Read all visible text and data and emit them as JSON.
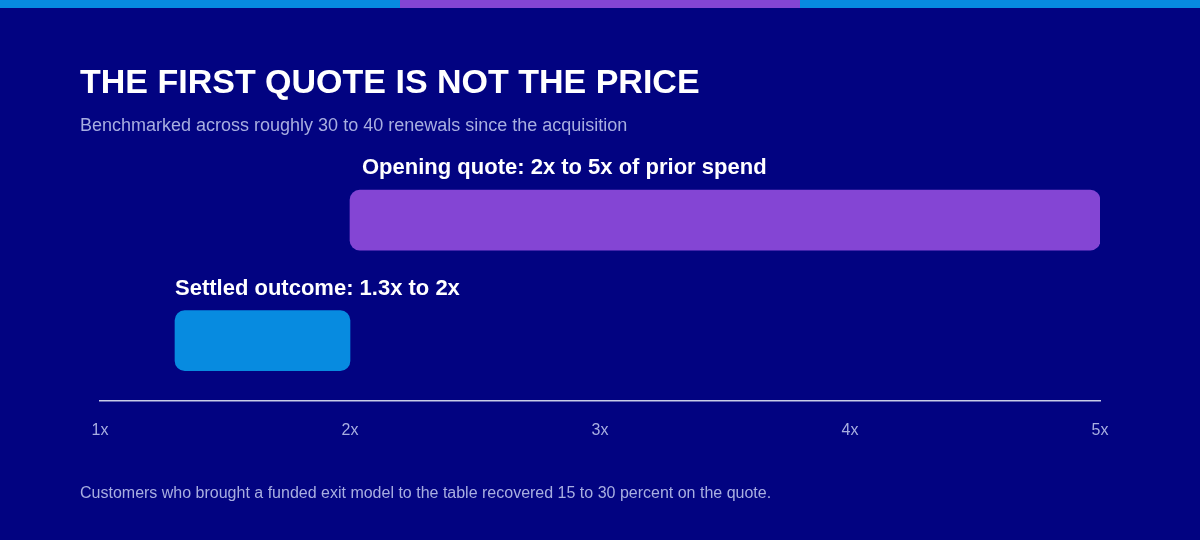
{
  "chart_data": {
    "type": "bar",
    "orientation": "horizontal",
    "title": "THE FIRST QUOTE IS NOT THE PRICE",
    "subtitle": "Benchmarked across roughly 30 to 40 renewals since the acquisition",
    "categories": [
      "Opening quote: 2x to 5x of prior spend",
      "Settled outcome: 1.3x to 2x"
    ],
    "values": [
      3,
      0.7
    ],
    "base": [
      2,
      1.3
    ],
    "colors": [
      "#8445d4",
      "#078be0"
    ],
    "xlim": [
      1,
      5
    ],
    "xticks": [
      {
        "value": 1,
        "label": "1x"
      },
      {
        "value": 2,
        "label": "2x"
      },
      {
        "value": 3,
        "label": "3x"
      },
      {
        "value": 4,
        "label": "4x"
      },
      {
        "value": 5,
        "label": "5x"
      }
    ],
    "grid": false,
    "legend": false,
    "annotations": [
      "Customers who brought a funded exit model to the table recovered 15 to 30 percent on the quote."
    ]
  }
}
